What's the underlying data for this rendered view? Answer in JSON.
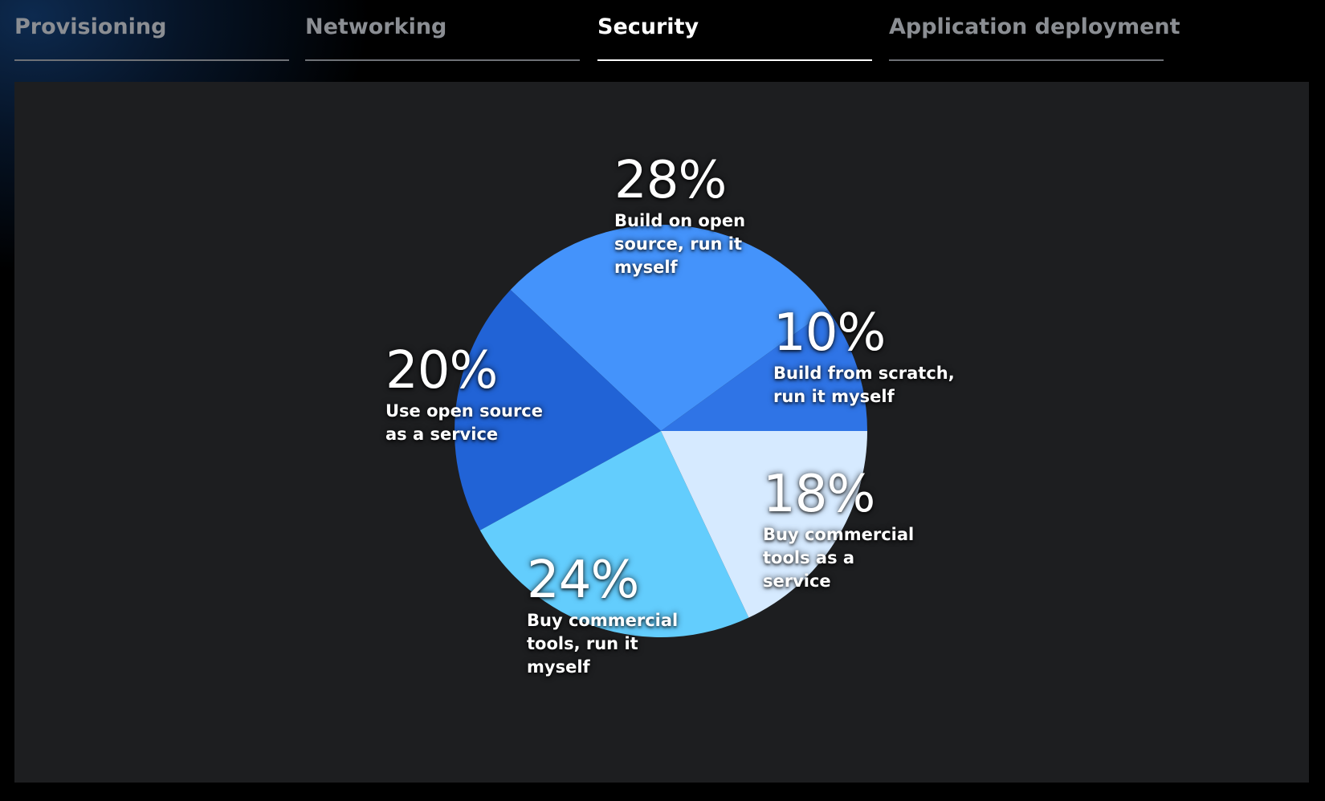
{
  "tabs": [
    {
      "label": "Provisioning",
      "active": false
    },
    {
      "label": "Networking",
      "active": false
    },
    {
      "label": "Security",
      "active": true
    },
    {
      "label": "Application deployment",
      "active": false
    }
  ],
  "colors": {
    "background": "#000000",
    "panel": "#1d1e20",
    "active_tab": "#ffffff",
    "inactive_tab": "#8b8e93"
  },
  "chart_data": {
    "type": "pie",
    "title": "",
    "slices": [
      {
        "label": "Build from scratch,\nrun it myself",
        "value": 10,
        "value_label": "10%",
        "color": "#2f74e6"
      },
      {
        "label": "Build on open\nsource, run it\nmyself",
        "value": 28,
        "value_label": "28%",
        "color": "#4493fb"
      },
      {
        "label": "Use open source\nas a service",
        "value": 20,
        "value_label": "20%",
        "color": "#2163d6"
      },
      {
        "label": "Buy commercial\ntools, run it\nmyself",
        "value": 24,
        "value_label": "24%",
        "color": "#63cdfd"
      },
      {
        "label": "Buy commercial\ntools as a\nservice",
        "value": 18,
        "value_label": "18%",
        "color": "#d6eaff"
      }
    ]
  }
}
